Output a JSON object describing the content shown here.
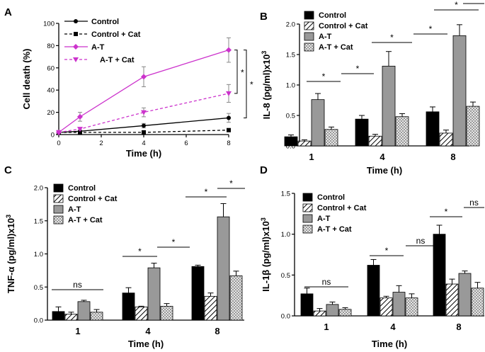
{
  "colors": {
    "control": "#000000",
    "at": "#999999",
    "line_at": "#cc33cc",
    "line_control": "#000000"
  },
  "chart_data": [
    {
      "panel": "A",
      "type": "line",
      "title": "",
      "xlabel": "Time (h)",
      "ylabel": "Cell death (%)",
      "x": [
        0,
        1,
        4,
        8
      ],
      "xlim": [
        0,
        8
      ],
      "ylim": [
        0,
        100
      ],
      "xticks": [
        "0",
        "2",
        "4",
        "6",
        "8"
      ],
      "yticks": [
        "0",
        "20",
        "40",
        "60",
        "80",
        "100"
      ],
      "series": [
        {
          "name": "Control",
          "values": [
            2,
            3,
            8,
            15
          ],
          "errors": [
            0,
            1,
            2,
            4
          ]
        },
        {
          "name": "Control + Cat",
          "values": [
            2,
            2,
            2,
            4
          ],
          "errors": [
            0,
            0.5,
            0.5,
            1
          ]
        },
        {
          "name": "A-T",
          "values": [
            2,
            16,
            52,
            76
          ],
          "errors": [
            0,
            4,
            9,
            11
          ]
        },
        {
          "name": "A-T + Cat",
          "values": [
            2,
            5,
            20,
            37
          ],
          "errors": [
            0,
            1,
            4,
            8
          ]
        }
      ],
      "significance": [
        "*",
        "*"
      ],
      "legend": "top-left"
    },
    {
      "panel": "B",
      "type": "bar",
      "title": "",
      "xlabel": "Time (h)",
      "ylabel": "IL-8 (pg/ml)x10",
      "ylabel_sup": "3",
      "categories": [
        "1",
        "4",
        "8"
      ],
      "ylim": [
        0,
        2.0
      ],
      "yticks": [
        "0.0",
        "0.5",
        "1.0",
        "1.5",
        "2.0"
      ],
      "series": [
        {
          "name": "Control",
          "values": [
            0.15,
            0.44,
            0.56
          ],
          "errors": [
            0.03,
            0.06,
            0.08
          ]
        },
        {
          "name": "Control + Cat",
          "values": [
            0.08,
            0.16,
            0.21
          ],
          "errors": [
            0.02,
            0.03,
            0.05
          ]
        },
        {
          "name": "A-T",
          "values": [
            0.76,
            1.31,
            1.81
          ],
          "errors": [
            0.1,
            0.24,
            0.18
          ]
        },
        {
          "name": "A-T + Cat",
          "values": [
            0.27,
            0.48,
            0.65
          ],
          "errors": [
            0.04,
            0.05,
            0.07
          ]
        }
      ],
      "significance": [
        "*",
        "*",
        "*",
        "*",
        "*",
        "*"
      ],
      "legend": "top-left"
    },
    {
      "panel": "C",
      "type": "bar",
      "title": "",
      "xlabel": "Time (h)",
      "ylabel": "TNF-α (pg/ml)x10",
      "ylabel_sup": "3",
      "categories": [
        "1",
        "4",
        "8"
      ],
      "ylim": [
        0,
        2.0
      ],
      "yticks": [
        "0.0",
        "0.5",
        "1.0",
        "1.5",
        "2.0"
      ],
      "series": [
        {
          "name": "Control",
          "values": [
            0.13,
            0.41,
            0.81
          ],
          "errors": [
            0.07,
            0.08,
            0.02
          ]
        },
        {
          "name": "Control + Cat",
          "values": [
            0.09,
            0.2,
            0.36
          ],
          "errors": [
            0.03,
            0.01,
            0.05
          ]
        },
        {
          "name": "A-T",
          "values": [
            0.28,
            0.79,
            1.56
          ],
          "errors": [
            0.02,
            0.07,
            0.2
          ]
        },
        {
          "name": "A-T + Cat",
          "values": [
            0.12,
            0.21,
            0.67
          ],
          "errors": [
            0.04,
            0.04,
            0.07
          ]
        }
      ],
      "significance": [
        "ns",
        "*",
        "*",
        "*",
        "*"
      ],
      "legend": "top-left"
    },
    {
      "panel": "D",
      "type": "bar",
      "title": "",
      "xlabel": "Time (h)",
      "ylabel": "IL-1β (pg/ml)x10",
      "ylabel_sup": "3",
      "categories": [
        "1",
        "4",
        "8"
      ],
      "ylim": [
        0,
        1.5
      ],
      "yticks": [
        "0.0",
        "0.5",
        "1.0",
        "1.5"
      ],
      "series": [
        {
          "name": "Control",
          "values": [
            0.27,
            0.62,
            1.0
          ],
          "errors": [
            0.07,
            0.07,
            0.11
          ]
        },
        {
          "name": "Control + Cat",
          "values": [
            0.06,
            0.22,
            0.39
          ],
          "errors": [
            0.03,
            0.02,
            0.06
          ]
        },
        {
          "name": "A-T",
          "values": [
            0.14,
            0.29,
            0.52
          ],
          "errors": [
            0.03,
            0.08,
            0.03
          ]
        },
        {
          "name": "A-T + Cat",
          "values": [
            0.08,
            0.22,
            0.34
          ],
          "errors": [
            0.02,
            0.05,
            0.07
          ]
        }
      ],
      "significance": [
        "ns",
        "*",
        "ns",
        "*",
        "ns"
      ],
      "legend": "top-left"
    }
  ]
}
